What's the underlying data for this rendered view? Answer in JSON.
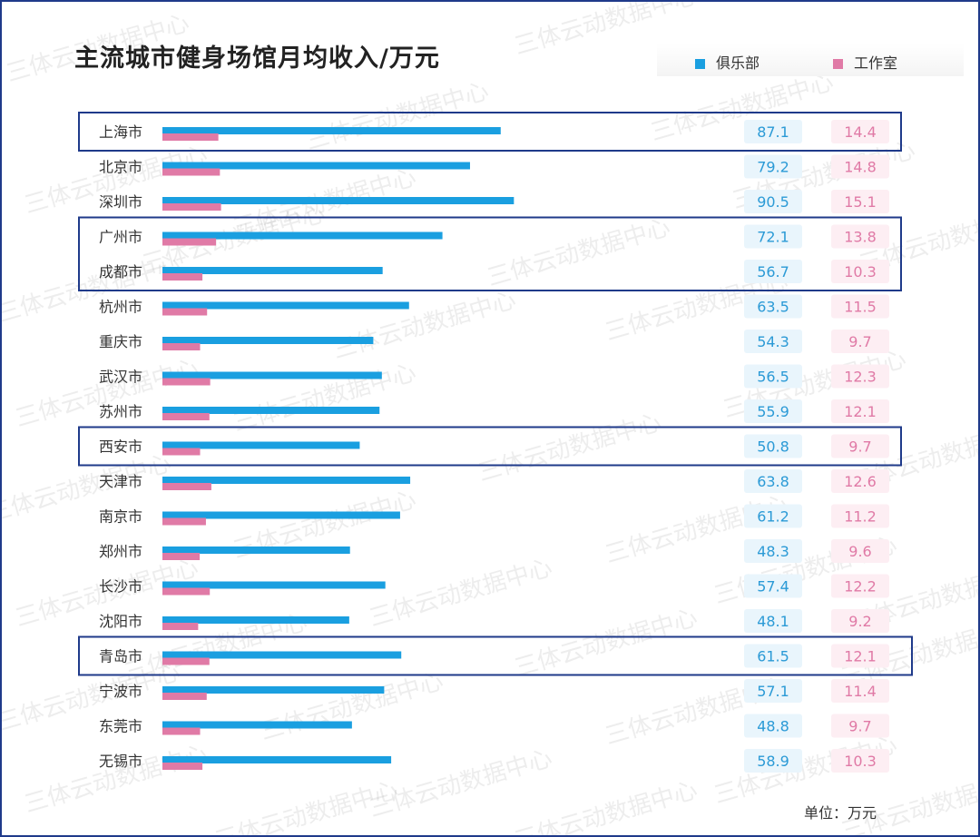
{
  "title": "主流城市健身场馆月均收入/万元",
  "unit": "单位：万元",
  "watermark": "三体云动数据中心",
  "colors": {
    "club": "#1a9fe0",
    "studio": "#e07aa6",
    "club_value_bg": "#e9f5fc",
    "studio_value_bg": "#fdeef3",
    "club_value_text": "#2b9ad6",
    "studio_value_text": "#e07aa6",
    "highlight_border": "#1f3a8a"
  },
  "legend": [
    {
      "label": "俱乐部",
      "color": "#1a9fe0"
    },
    {
      "label": "工作室",
      "color": "#e07aa6"
    }
  ],
  "chart_data": {
    "type": "bar",
    "orientation": "horizontal",
    "title": "主流城市健身场馆月均收入/万元",
    "unit": "万元",
    "categories": [
      "上海市",
      "北京市",
      "深圳市",
      "广州市",
      "成都市",
      "杭州市",
      "重庆市",
      "武汉市",
      "苏州市",
      "西安市",
      "天津市",
      "南京市",
      "郑州市",
      "长沙市",
      "沈阳市",
      "青岛市",
      "宁波市",
      "东莞市",
      "无锡市"
    ],
    "series": [
      {
        "name": "俱乐部",
        "values": [
          87.1,
          79.2,
          90.5,
          72.1,
          56.7,
          63.5,
          54.3,
          56.5,
          55.9,
          50.8,
          63.8,
          61.2,
          48.3,
          57.4,
          48.1,
          61.5,
          57.1,
          48.8,
          58.9
        ]
      },
      {
        "name": "工作室",
        "values": [
          14.4,
          14.8,
          15.1,
          13.8,
          10.3,
          11.5,
          9.7,
          12.3,
          12.1,
          9.7,
          12.6,
          11.2,
          9.6,
          12.2,
          9.2,
          12.1,
          11.4,
          9.7,
          10.3
        ]
      }
    ],
    "highlighted_groups": [
      [
        "上海市"
      ],
      [
        "广州市",
        "成都市"
      ],
      [
        "西安市"
      ],
      [
        "青岛市"
      ]
    ],
    "legend": "top-right",
    "grid": false
  }
}
